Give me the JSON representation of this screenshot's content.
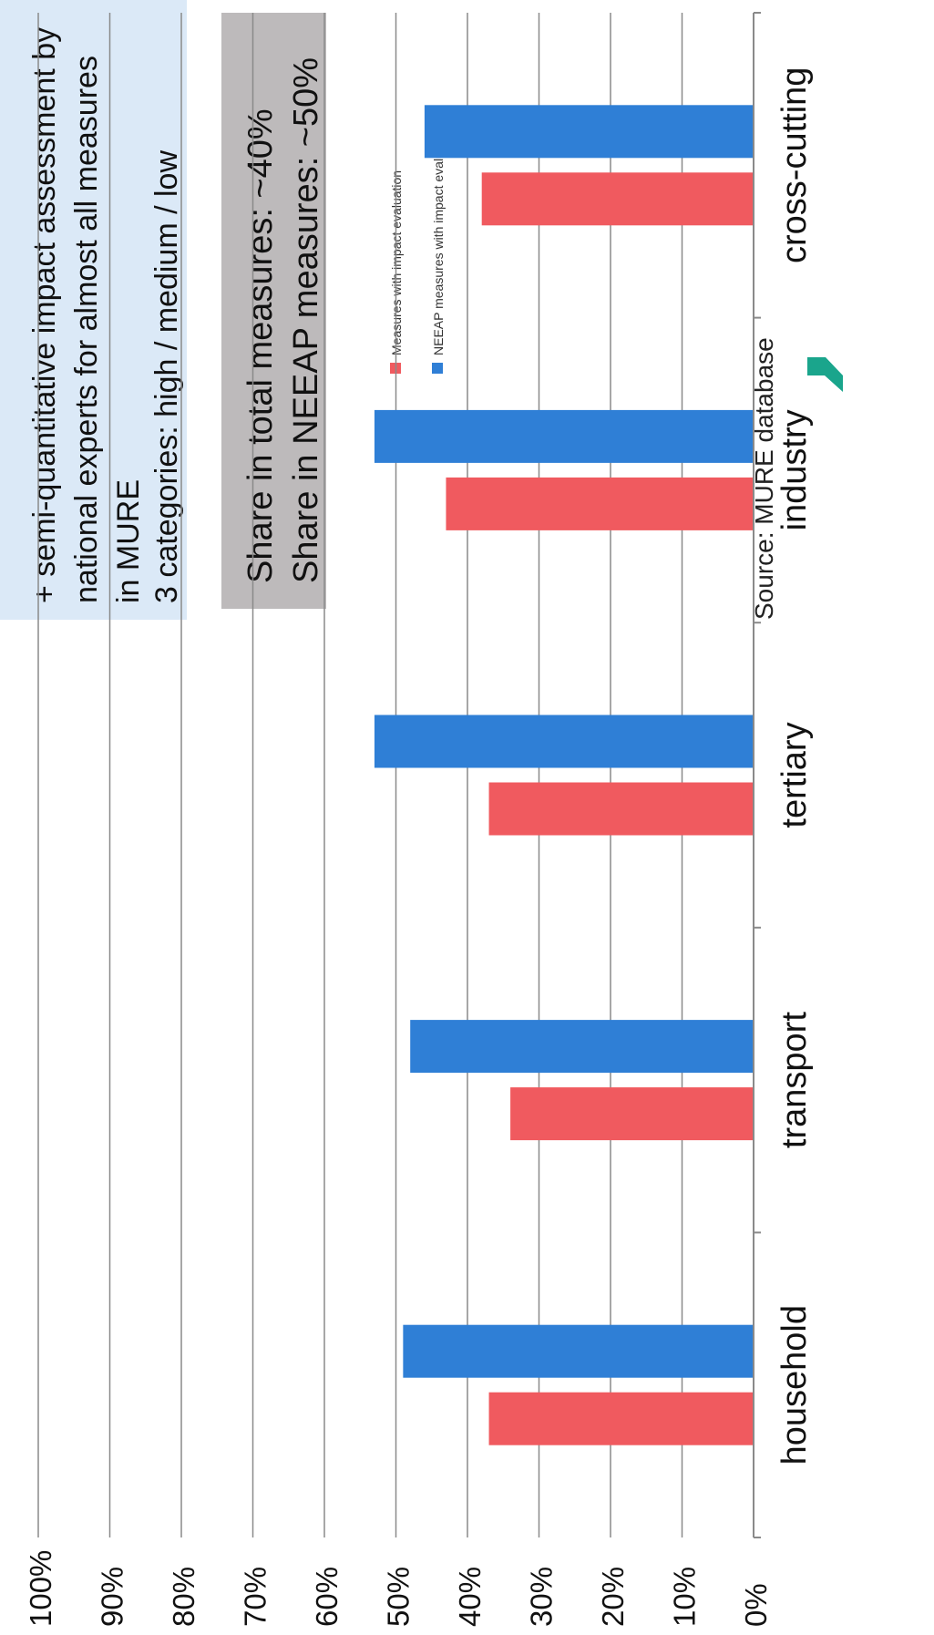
{
  "colors": {
    "series_1": "#f05a5f",
    "series_2": "#2f7fd6",
    "gridline": "#8a8a8a",
    "info_box": "#dbe9f7",
    "share_box": "#bdbabb",
    "logo_green": "#1aa58c"
  },
  "info_box": {
    "lines": [
      "+ semi-quantitative impact assessment  by",
      "national experts for almost all measures",
      "in MURE",
      "3 categories: high / medium / low"
    ]
  },
  "share_box": {
    "lines": [
      "Share in total measures: ~40%",
      "Share in NEEAP measures: ~50%"
    ]
  },
  "source": "Source: MURE database",
  "logo_icon": "green-chevron-logo-icon",
  "chart_data": {
    "type": "bar",
    "orientation": "vertical bars, figure rotated 90 degrees",
    "categories": [
      "household",
      "transport",
      "tertiary",
      "industry",
      "cross-cutting"
    ],
    "series": [
      {
        "name": "Measures with impact evaluation",
        "values": [
          37,
          34,
          37,
          43,
          38
        ]
      },
      {
        "name": "NEEAP measures with impact evaluation",
        "values": [
          49,
          48,
          53,
          53,
          46
        ]
      }
    ],
    "ylim": [
      0,
      100
    ],
    "yticks": [
      "0%",
      "10%",
      "20%",
      "30%",
      "40%",
      "50%",
      "60%",
      "70%",
      "80%",
      "90%",
      "100%"
    ],
    "grid": true,
    "legend": "right"
  }
}
